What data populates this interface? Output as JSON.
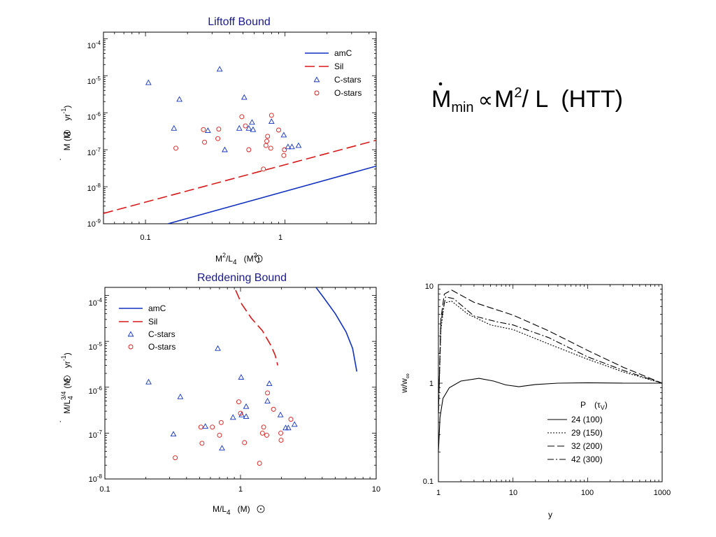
{
  "colors": {
    "amC": "#1030c0",
    "Sil": "#d81818",
    "cstars": "#1030c0",
    "ostars": "#d81818",
    "title": "#1a1a8c"
  },
  "equation": {
    "mdot": "M",
    "sub": "min",
    "prop": "∝",
    "m": "M",
    "exp": "2",
    "rest": "/ L",
    "htt": "(HTT)"
  },
  "chart_data": [
    {
      "type": "scatter",
      "title": "Liftoff Bound",
      "log_x": true,
      "log_y": true,
      "xlim": [
        0.05,
        4.5
      ],
      "ylim": [
        1e-09,
        0.00015
      ],
      "xticks": [
        "0.1",
        "1"
      ],
      "xlabel_parts": {
        "a": "M",
        "sup": "2",
        "b": "/L",
        "sub": "4",
        "c": "(M",
        "d": "2",
        "e": ")"
      },
      "ylabel_parts": {
        "a": "M (M",
        "b": " yr",
        "sup": "-1",
        "c": ")"
      },
      "series": [
        {
          "name": "amC",
          "kind": "line",
          "points": [
            [
              0.145,
              1e-09
            ],
            [
              4.5,
              3.6e-08
            ]
          ]
        },
        {
          "name": "Sil",
          "kind": "dashed",
          "points": [
            [
              0.05,
              1.9e-09
            ],
            [
              4.5,
              1.8e-07
            ]
          ]
        },
        {
          "name": "C-stars",
          "kind": "triangle",
          "points": [
            [
              0.105,
              6.5e-06
            ],
            [
              0.175,
              2.3e-06
            ],
            [
              0.16,
              3.8e-07
            ],
            [
              0.28,
              3.3e-07
            ],
            [
              0.34,
              1.5e-05
            ],
            [
              0.37,
              1e-07
            ],
            [
              0.47,
              3.8e-07
            ],
            [
              0.51,
              2.6e-06
            ],
            [
              0.55,
              3.8e-07
            ],
            [
              0.58,
              5.5e-07
            ],
            [
              0.59,
              3.5e-07
            ],
            [
              0.8,
              5.8e-07
            ],
            [
              0.98,
              2.5e-07
            ],
            [
              1.05,
              1.2e-07
            ],
            [
              1.12,
              1.2e-07
            ],
            [
              1.25,
              1.3e-07
            ]
          ]
        },
        {
          "name": "O-stars",
          "kind": "circle",
          "points": [
            [
              0.165,
              1.1e-07
            ],
            [
              0.26,
              3.5e-07
            ],
            [
              0.265,
              1.6e-07
            ],
            [
              0.33,
              2e-07
            ],
            [
              0.335,
              3.6e-07
            ],
            [
              0.49,
              7.8e-07
            ],
            [
              0.52,
              4.4e-07
            ],
            [
              0.55,
              1e-07
            ],
            [
              0.7,
              3e-08
            ],
            [
              0.73,
              1.3e-07
            ],
            [
              0.74,
              1.7e-07
            ],
            [
              0.75,
              2.3e-07
            ],
            [
              0.79,
              1.1e-07
            ],
            [
              0.8,
              8.5e-07
            ],
            [
              0.9,
              3.4e-07
            ],
            [
              0.98,
              7e-08
            ],
            [
              0.99,
              1e-07
            ]
          ]
        }
      ]
    },
    {
      "type": "scatter",
      "title": "Reddening Bound",
      "log_x": true,
      "log_y": true,
      "xlim": [
        0.1,
        10
      ],
      "ylim": [
        1e-08,
        0.00015
      ],
      "xticks": [
        "0.1",
        "1",
        "10"
      ],
      "xlabel_parts": {
        "a": "M/L",
        "sub": "4",
        "b": "(M",
        "c": ")"
      },
      "ylabel_parts": {
        "a": "M/L",
        "sub": "4",
        "sup": "3/4",
        "b": "(M",
        "c": " yr",
        "d": "-1",
        "e": ")"
      },
      "series": [
        {
          "name": "amC",
          "kind": "line",
          "points": [
            [
              3.6,
              0.00015
            ],
            [
              4.1,
              9e-05
            ],
            [
              5.0,
              4e-05
            ],
            [
              6.0,
              1.6e-05
            ],
            [
              6.7,
              7e-06
            ],
            [
              7.0,
              3.5e-06
            ],
            [
              7.2,
              2.2e-06
            ]
          ]
        },
        {
          "name": "Sil",
          "kind": "dashed",
          "points": [
            [
              0.92,
              0.00013
            ],
            [
              1.02,
              6.5e-05
            ],
            [
              1.2,
              3.2e-05
            ],
            [
              1.45,
              1.7e-05
            ],
            [
              1.68,
              8e-06
            ],
            [
              1.8,
              5e-06
            ],
            [
              1.88,
              3e-06
            ]
          ]
        },
        {
          "name": "C-stars",
          "kind": "triangle",
          "points": [
            [
              0.21,
              1.3e-06
            ],
            [
              0.32,
              9.5e-08
            ],
            [
              0.36,
              6.2e-07
            ],
            [
              0.55,
              1.4e-07
            ],
            [
              0.68,
              7e-06
            ],
            [
              0.73,
              4.7e-08
            ],
            [
              0.88,
              2.2e-07
            ],
            [
              1.01,
              1.65e-06
            ],
            [
              1.02,
              2.5e-07
            ],
            [
              1.1,
              2.3e-07
            ],
            [
              1.1,
              3.8e-07
            ],
            [
              1.58,
              5e-07
            ],
            [
              1.63,
              1.2e-06
            ],
            [
              1.97,
              2.5e-07
            ],
            [
              2.15,
              1.3e-07
            ],
            [
              2.25,
              1.3e-07
            ],
            [
              2.5,
              1.55e-07
            ]
          ]
        },
        {
          "name": "O-stars",
          "kind": "circle",
          "points": [
            [
              0.33,
              2.9e-08
            ],
            [
              0.51,
              1.35e-07
            ],
            [
              0.52,
              6e-08
            ],
            [
              0.62,
              1.35e-07
            ],
            [
              0.7,
              9e-08
            ],
            [
              0.72,
              1.7e-07
            ],
            [
              0.97,
              4.8e-07
            ],
            [
              1.0,
              2.7e-07
            ],
            [
              1.07,
              6.2e-08
            ],
            [
              1.38,
              2.2e-08
            ],
            [
              1.45,
              1e-07
            ],
            [
              1.48,
              1.35e-07
            ],
            [
              1.56,
              9e-08
            ],
            [
              1.58,
              7.5e-07
            ],
            [
              1.75,
              3.3e-07
            ],
            [
              1.98,
              1e-07
            ],
            [
              1.99,
              7e-08
            ],
            [
              2.35,
              2e-07
            ]
          ]
        }
      ]
    },
    {
      "type": "line",
      "log_x": true,
      "log_y": true,
      "xlim": [
        1,
        1000
      ],
      "ylim": [
        0.1,
        10
      ],
      "xticks": [
        "1",
        "10",
        "100",
        "1000"
      ],
      "yticks": [
        "0.1",
        "1",
        "10"
      ],
      "xlabel": "y",
      "ylabel_parts": {
        "a": "w/w",
        "sub": "∞"
      },
      "legend_header": {
        "p": "P",
        "tau": "(τ",
        "v": "V",
        "close": ")"
      },
      "series": [
        {
          "name": "24  (100)",
          "dash": "",
          "points": [
            [
              1,
              0.2
            ],
            [
              1.05,
              0.45
            ],
            [
              1.15,
              0.7
            ],
            [
              1.4,
              0.9
            ],
            [
              2,
              1.05
            ],
            [
              3.5,
              1.12
            ],
            [
              5.5,
              1.05
            ],
            [
              8,
              0.96
            ],
            [
              12,
              0.92
            ],
            [
              20,
              0.97
            ],
            [
              40,
              1.0
            ],
            [
              100,
              1.01
            ],
            [
              300,
              1.0
            ],
            [
              1000,
              1.0
            ]
          ]
        },
        {
          "name": "29  (150)",
          "dash": "2,2",
          "points": [
            [
              1,
              0.5
            ],
            [
              1.08,
              3.5
            ],
            [
              1.2,
              6.5
            ],
            [
              1.5,
              6.8
            ],
            [
              2.5,
              5.0
            ],
            [
              5,
              3.9
            ],
            [
              10,
              3.5
            ],
            [
              30,
              2.5
            ],
            [
              100,
              1.75
            ],
            [
              300,
              1.3
            ],
            [
              1000,
              1.0
            ]
          ]
        },
        {
          "name": "32  (200)",
          "dash": "10,4",
          "points": [
            [
              1,
              0.5
            ],
            [
              1.08,
              4.5
            ],
            [
              1.2,
              8.0
            ],
            [
              1.5,
              8.8
            ],
            [
              3,
              6.6
            ],
            [
              10,
              4.9
            ],
            [
              30,
              3.4
            ],
            [
              100,
              2.15
            ],
            [
              300,
              1.45
            ],
            [
              1000,
              1.0
            ]
          ]
        },
        {
          "name": "42  (300)",
          "dash": "9,3,2,3",
          "points": [
            [
              1,
              0.5
            ],
            [
              1.08,
              4.2
            ],
            [
              1.25,
              7.5
            ],
            [
              1.6,
              7.2
            ],
            [
              3,
              4.8
            ],
            [
              6,
              4.2
            ],
            [
              10,
              3.9
            ],
            [
              30,
              2.9
            ],
            [
              100,
              1.85
            ],
            [
              300,
              1.35
            ],
            [
              1000,
              1.0
            ]
          ]
        }
      ]
    }
  ]
}
